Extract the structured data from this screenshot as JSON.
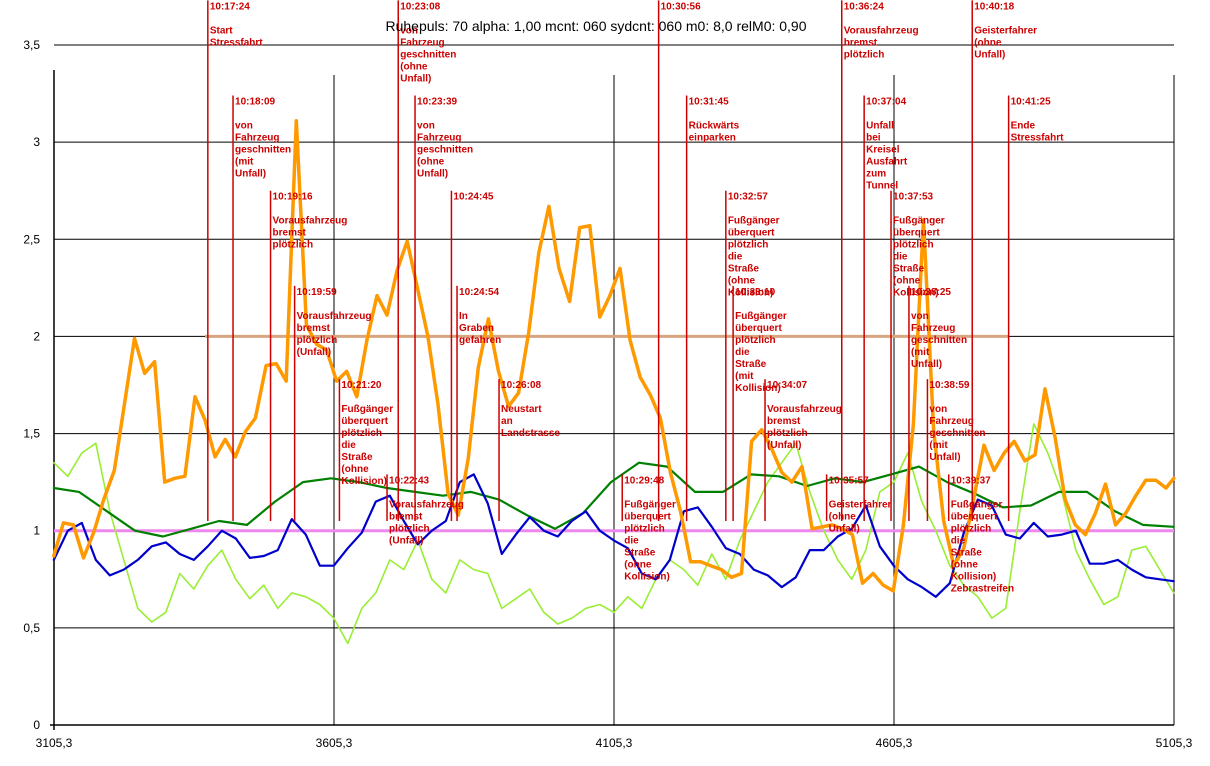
{
  "chart_data": {
    "type": "line",
    "title": "Ruhepuls: 70 alpha: 1,00 mcnt:  060 sydcnt: 060 m0: 8,0 relM0: 0,90",
    "xlim": [
      3105.3,
      5105.3
    ],
    "ylim": [
      0,
      3.5
    ],
    "x_ticks": [
      "3105,3",
      "3605,3",
      "4105,3",
      "4605,3",
      "5105,3"
    ],
    "y_ticks": [
      "0",
      "0,5",
      "1",
      "1,5",
      "2",
      "2,5",
      "3",
      "3,5"
    ],
    "grid": true,
    "colors": {
      "orange": "#ff9900",
      "green": "#008000",
      "blue": "#0000cc",
      "lightgreen": "#99ee33",
      "pink": "#ee88ee",
      "tan": "#d9a580",
      "annotation": "#cc0000"
    },
    "reference_lines": [
      {
        "color": "pink",
        "y": 1.0,
        "x_from": 3105.3,
        "x_to": 5105.3
      },
      {
        "color": "tan",
        "y": 2.0,
        "x_from": 3375,
        "x_to": 4810
      }
    ],
    "series": [
      {
        "color": "orange",
        "x": [
          3105,
          3122,
          3140,
          3158,
          3176,
          3194,
          3213,
          3231,
          3249,
          3267,
          3285,
          3303,
          3321,
          3339,
          3357,
          3375,
          3393,
          3411,
          3429,
          3447,
          3465,
          3484,
          3502,
          3520,
          3538,
          3556,
          3574,
          3592,
          3610,
          3628,
          3646,
          3664,
          3682,
          3700,
          3718,
          3736,
          3755,
          3773,
          3791,
          3809,
          3827,
          3845,
          3863,
          3881,
          3899,
          3917,
          3935,
          3953,
          3971,
          3989,
          4007,
          4026,
          4044,
          4062,
          4080,
          4098,
          4116,
          4134,
          4152,
          4170,
          4188,
          4206,
          4224,
          4242,
          4260,
          4278,
          4297,
          4315,
          4333,
          4351,
          4369,
          4387,
          4405,
          4423,
          4441,
          4459,
          4477,
          4495,
          4513,
          4531,
          4549,
          4568,
          4586,
          4604,
          4622,
          4640,
          4658,
          4676,
          4694,
          4712,
          4730,
          4748,
          4766,
          4784,
          4802,
          4820,
          4839,
          4857,
          4875,
          4893,
          4911,
          4929,
          4947,
          4965,
          4983,
          5001,
          5019,
          5037,
          5055,
          5073,
          5091,
          5105
        ],
        "y": [
          0.87,
          1.04,
          1.03,
          0.86,
          0.99,
          1.16,
          1.31,
          1.65,
          1.99,
          1.81,
          1.87,
          1.25,
          1.27,
          1.28,
          1.69,
          1.57,
          1.38,
          1.47,
          1.38,
          1.51,
          1.58,
          1.85,
          1.86,
          1.77,
          3.11,
          2.06,
          1.96,
          1.93,
          1.77,
          1.82,
          1.69,
          1.98,
          2.21,
          2.11,
          2.34,
          2.49,
          2.24,
          2.0,
          1.65,
          1.19,
          1.08,
          1.37,
          1.84,
          2.09,
          1.82,
          1.64,
          1.71,
          2.02,
          2.43,
          2.67,
          2.35,
          2.18,
          2.56,
          2.57,
          2.1,
          2.21,
          2.35,
          1.98,
          1.79,
          1.7,
          1.58,
          1.3,
          1.1,
          0.84,
          0.84,
          0.82,
          0.8,
          0.76,
          0.78,
          1.46,
          1.52,
          1.42,
          1.3,
          1.25,
          1.33,
          1.01,
          1.02,
          1.03,
          1.01,
          0.98,
          0.73,
          0.78,
          0.72,
          0.69,
          1.03,
          1.55,
          2.6,
          1.52,
          1.05,
          0.82,
          0.91,
          1.17,
          1.44,
          1.31,
          1.4,
          1.46,
          1.36,
          1.39,
          1.73,
          1.48,
          1.16,
          1.03,
          0.98,
          1.09,
          1.24,
          1.03,
          1.09,
          1.18,
          1.26,
          1.26,
          1.22,
          1.27
        ]
      },
      {
        "color": "green",
        "x": [
          3105,
          3150,
          3200,
          3250,
          3300,
          3350,
          3400,
          3450,
          3500,
          3550,
          3600,
          3650,
          3700,
          3750,
          3800,
          3850,
          3900,
          3950,
          4000,
          4050,
          4100,
          4150,
          4200,
          4250,
          4300,
          4350,
          4400,
          4450,
          4500,
          4550,
          4600,
          4650,
          4700,
          4750,
          4800,
          4850,
          4900,
          4950,
          5000,
          5050,
          5105
        ],
        "y": [
          1.22,
          1.2,
          1.1,
          1.0,
          0.97,
          1.01,
          1.05,
          1.03,
          1.15,
          1.25,
          1.27,
          1.25,
          1.22,
          1.2,
          1.18,
          1.2,
          1.16,
          1.08,
          1.01,
          1.09,
          1.25,
          1.35,
          1.33,
          1.2,
          1.2,
          1.29,
          1.28,
          1.23,
          1.27,
          1.25,
          1.29,
          1.33,
          1.25,
          1.19,
          1.12,
          1.13,
          1.2,
          1.2,
          1.1,
          1.03,
          1.02
        ]
      },
      {
        "color": "blue",
        "x": [
          3105,
          3130,
          3155,
          3180,
          3205,
          3230,
          3255,
          3280,
          3305,
          3330,
          3355,
          3380,
          3405,
          3430,
          3455,
          3480,
          3505,
          3530,
          3555,
          3580,
          3605,
          3630,
          3655,
          3680,
          3705,
          3730,
          3755,
          3780,
          3805,
          3830,
          3855,
          3880,
          3905,
          3930,
          3955,
          3980,
          4005,
          4030,
          4055,
          4080,
          4105,
          4130,
          4155,
          4180,
          4205,
          4230,
          4255,
          4280,
          4305,
          4330,
          4355,
          4380,
          4405,
          4430,
          4455,
          4480,
          4505,
          4530,
          4555,
          4580,
          4605,
          4630,
          4655,
          4680,
          4705,
          4730,
          4755,
          4780,
          4805,
          4830,
          4855,
          4880,
          4905,
          4930,
          4955,
          4980,
          5005,
          5030,
          5055,
          5080,
          5105
        ],
        "y": [
          0.85,
          1.0,
          1.04,
          0.85,
          0.77,
          0.8,
          0.85,
          0.92,
          0.94,
          0.88,
          0.85,
          0.92,
          1.0,
          0.96,
          0.86,
          0.87,
          0.9,
          1.06,
          0.98,
          0.82,
          0.82,
          0.91,
          0.99,
          1.15,
          1.18,
          1.05,
          0.93,
          1.0,
          1.05,
          1.25,
          1.29,
          1.14,
          0.88,
          0.98,
          1.07,
          1.0,
          0.97,
          1.05,
          1.1,
          1.0,
          0.95,
          0.91,
          0.78,
          0.75,
          0.85,
          1.1,
          1.12,
          1.02,
          0.91,
          0.88,
          0.8,
          0.77,
          0.71,
          0.76,
          0.9,
          0.9,
          0.97,
          1.01,
          1.13,
          0.92,
          0.82,
          0.75,
          0.71,
          0.66,
          0.73,
          0.99,
          1.16,
          1.13,
          0.98,
          0.96,
          1.04,
          0.97,
          0.98,
          1.0,
          0.83,
          0.83,
          0.85,
          0.8,
          0.76,
          0.75,
          0.74
        ]
      },
      {
        "color": "lightgreen",
        "x": [
          3105,
          3130,
          3155,
          3180,
          3205,
          3230,
          3255,
          3280,
          3305,
          3330,
          3355,
          3380,
          3405,
          3430,
          3455,
          3480,
          3505,
          3530,
          3555,
          3580,
          3605,
          3630,
          3655,
          3680,
          3705,
          3730,
          3755,
          3780,
          3805,
          3830,
          3855,
          3880,
          3905,
          3930,
          3955,
          3980,
          4005,
          4030,
          4055,
          4080,
          4105,
          4130,
          4155,
          4180,
          4205,
          4230,
          4255,
          4280,
          4305,
          4330,
          4355,
          4380,
          4405,
          4430,
          4455,
          4480,
          4505,
          4530,
          4555,
          4580,
          4605,
          4630,
          4655,
          4680,
          4705,
          4730,
          4755,
          4780,
          4805,
          4830,
          4855,
          4880,
          4905,
          4930,
          4955,
          4980,
          5005,
          5030,
          5055,
          5080,
          5105
        ],
        "y": [
          1.35,
          1.28,
          1.4,
          1.45,
          1.1,
          0.85,
          0.6,
          0.53,
          0.58,
          0.78,
          0.7,
          0.82,
          0.9,
          0.75,
          0.65,
          0.72,
          0.6,
          0.68,
          0.66,
          0.62,
          0.55,
          0.42,
          0.6,
          0.68,
          0.85,
          0.8,
          0.95,
          0.75,
          0.68,
          0.85,
          0.8,
          0.78,
          0.6,
          0.65,
          0.7,
          0.58,
          0.52,
          0.55,
          0.6,
          0.62,
          0.58,
          0.66,
          0.6,
          0.75,
          0.85,
          0.8,
          0.72,
          0.88,
          0.75,
          0.95,
          1.1,
          1.25,
          1.35,
          1.45,
          1.2,
          1.0,
          0.85,
          0.75,
          0.9,
          1.2,
          1.25,
          1.4,
          1.15,
          1.0,
          0.82,
          0.72,
          0.66,
          0.55,
          0.6,
          1.1,
          1.55,
          1.4,
          1.2,
          0.9,
          0.75,
          0.62,
          0.66,
          0.9,
          0.92,
          0.8,
          0.68
        ]
      }
    ],
    "annotations": [
      {
        "time": "10:17:24",
        "label": [
          "Start",
          "Stressfahrt"
        ],
        "x": 3380,
        "top": 3.73,
        "bottom": 1.05
      },
      {
        "time": "10:18:09",
        "label": [
          "von",
          "Fahrzeug",
          "geschnitten",
          "(mit",
          "Unfall)"
        ],
        "x": 3425,
        "top": 3.24,
        "bottom": 1.05
      },
      {
        "time": "10:19:16",
        "label": [
          "Vorausfahrzeug",
          "bremst",
          "plötzlich"
        ],
        "x": 3492,
        "top": 2.75,
        "bottom": 1.05
      },
      {
        "time": "10:19:59",
        "label": [
          "Vorausfahrzeug",
          "bremst",
          "plötzlich",
          "(Unfall)"
        ],
        "x": 3535,
        "top": 2.26,
        "bottom": 1.05
      },
      {
        "time": "10:21:20",
        "label": [
          "Fußgänger",
          "überquert",
          "plötzlich",
          "die",
          "Straße",
          "(ohne",
          "Kollision)"
        ],
        "x": 3615,
        "top": 1.78,
        "bottom": 1.05
      },
      {
        "time": "10:22:43",
        "label": [
          "Vorausfahrzeug",
          "bremst",
          "plötzlich",
          "(Unfall)"
        ],
        "x": 3700,
        "top": 1.29,
        "bottom": 1.05
      },
      {
        "time": "10:23:08",
        "label": [
          "von",
          "Fahrzeug",
          "geschnitten",
          "(ohne",
          "Unfall)"
        ],
        "x": 3720,
        "top": 3.73,
        "bottom": 1.05
      },
      {
        "time": "10:23:39",
        "label": [
          "von",
          "Fahrzeug",
          "geschnitten",
          "(ohne",
          "Unfall)"
        ],
        "x": 3750,
        "top": 3.24,
        "bottom": 1.05
      },
      {
        "time": "10:24:45",
        "label": [],
        "x": 3815,
        "top": 2.75,
        "bottom": 1.05
      },
      {
        "time": "10:24:54",
        "label": [
          "In",
          "Graben",
          "gefahren"
        ],
        "x": 3825,
        "top": 2.26,
        "bottom": 1.05
      },
      {
        "time": "10:26:08",
        "label": [
          "Neustart",
          "an",
          "Landstrasse"
        ],
        "x": 3900,
        "top": 1.78,
        "bottom": 1.05
      },
      {
        "time": "10:29:48",
        "label": [
          "Fußgänger",
          "überquert",
          "plötzlich",
          "die",
          "Straße",
          "(ohne",
          "Kollision)"
        ],
        "x": 4120,
        "top": 1.29,
        "bottom": 1.05
      },
      {
        "time": "10:30:56",
        "label": [],
        "x": 4185,
        "top": 3.73,
        "bottom": 1.05
      },
      {
        "time": "10:31:45",
        "label": [
          "Rückwärts",
          "einparken"
        ],
        "x": 4235,
        "top": 3.24,
        "bottom": 1.05
      },
      {
        "time": "10:32:57",
        "label": [
          "Fußgänger",
          "überquert",
          "plötzlich",
          "die",
          "Straße",
          "(ohne",
          "Kollision)"
        ],
        "x": 4305,
        "top": 2.75,
        "bottom": 1.05
      },
      {
        "time": "10:33:10",
        "label": [
          "Fußgänger",
          "überquert",
          "plötzlich",
          "die",
          "Straße",
          "(mit",
          "Kollision)"
        ],
        "x": 4318,
        "top": 2.26,
        "bottom": 1.05
      },
      {
        "time": "10:34:07",
        "label": [
          "Vorausfahrzeug",
          "bremst",
          "plötzlich",
          "(Unfall)"
        ],
        "x": 4375,
        "top": 1.78,
        "bottom": 1.05
      },
      {
        "time": "10:35:57",
        "label": [
          "Geisterfahrer",
          "(ohne",
          "Unfall)"
        ],
        "x": 4485,
        "top": 1.29,
        "bottom": 1.05
      },
      {
        "time": "10:36:24",
        "label": [
          "Vorausfahrzeug",
          "bremst",
          "plötzlich"
        ],
        "x": 4512,
        "top": 3.73,
        "bottom": 1.05
      },
      {
        "time": "10:37:04",
        "label": [
          "Unfall",
          "bei",
          "Kreisel",
          "Ausfahrt",
          "zum",
          "Tunnel"
        ],
        "x": 4552,
        "top": 3.24,
        "bottom": 1.05
      },
      {
        "time": "10:37:53",
        "label": [
          "Fußgänger",
          "überquert",
          "plötzlich",
          "die",
          "Straße",
          "(ohne",
          "Kollision)"
        ],
        "x": 4600,
        "top": 2.75,
        "bottom": 1.05
      },
      {
        "time": "10:38:25",
        "label": [
          "von",
          "Fahrzeug",
          "geschnitten",
          "(mit",
          "Unfall)"
        ],
        "x": 4632,
        "top": 2.26,
        "bottom": 1.05
      },
      {
        "time": "10:38:59",
        "label": [
          "von",
          "Fahrzeug",
          "geschnitten",
          "(mit",
          "Unfall)"
        ],
        "x": 4665,
        "top": 1.78,
        "bottom": 1.05
      },
      {
        "time": "10:39:37",
        "label": [
          "Fußgänger",
          "überquert",
          "plötzlich",
          "die",
          "Straße",
          "(ohne",
          "Kollision)",
          "Zebrastreifen"
        ],
        "x": 4703,
        "top": 1.29,
        "bottom": 1.05
      },
      {
        "time": "10:40:18",
        "label": [
          "Geisterfahrer",
          "(ohne",
          "Unfall)"
        ],
        "x": 4745,
        "top": 3.73,
        "bottom": 1.05
      },
      {
        "time": "10:41:25",
        "label": [
          "Ende",
          "Stressfahrt"
        ],
        "x": 4810,
        "top": 3.24,
        "bottom": 1.05
      }
    ]
  }
}
